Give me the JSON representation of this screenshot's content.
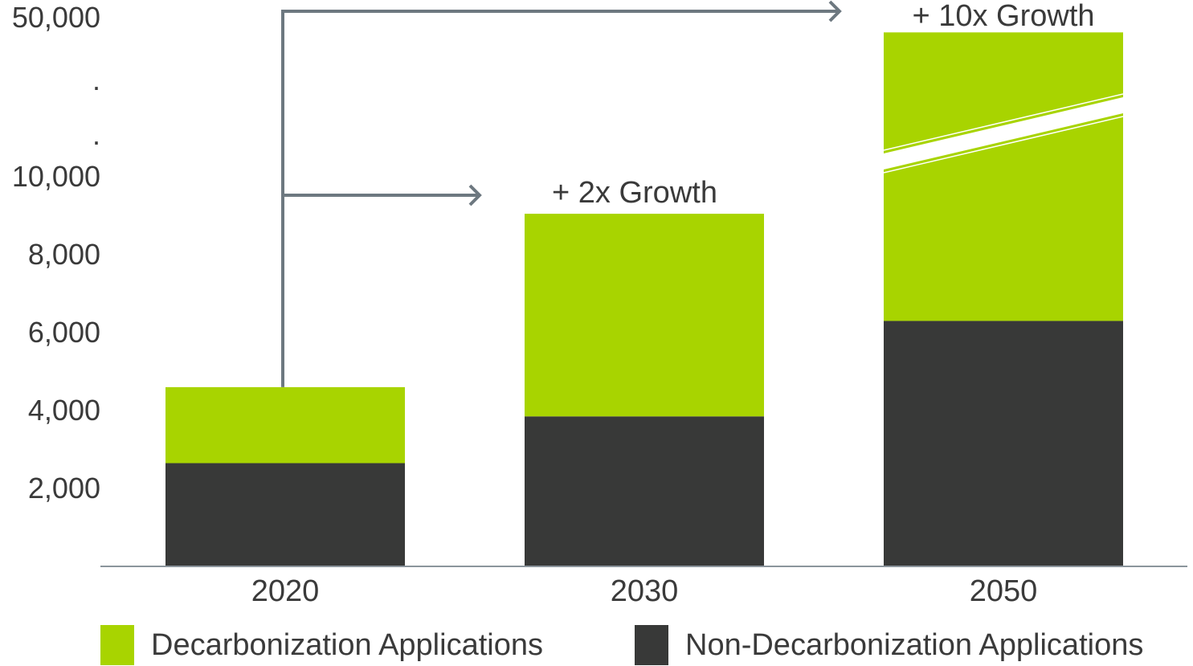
{
  "chart_data": {
    "type": "bar",
    "stacked": true,
    "categories": [
      "2020",
      "2030",
      "2050"
    ],
    "series": [
      {
        "name": "Non-Decarbonization Applications",
        "color": "#383938",
        "values": [
          2650,
          3850,
          6300
        ]
      },
      {
        "name": "Decarbonization Applications",
        "color": "#a8d400",
        "values": [
          1950,
          5200,
          40000
        ]
      }
    ],
    "y_ticks": [
      {
        "label": "2,000",
        "value": 2000
      },
      {
        "label": "4,000",
        "value": 4000
      },
      {
        "label": "6,000",
        "value": 6000
      },
      {
        "label": "8,000",
        "value": 8000
      },
      {
        "label": "10,000",
        "value": 10000
      },
      {
        "label": ".",
        "value": null
      },
      {
        "label": ".",
        "value": null
      },
      {
        "label": "50,000",
        "value": 50000
      }
    ],
    "axis_break": true,
    "ylim": [
      0,
      50000
    ],
    "legend": {
      "position": "bottom",
      "order": [
        1,
        0
      ]
    },
    "annotations": [
      {
        "text": "+ 2x Growth",
        "from": "2020",
        "to": "2030"
      },
      {
        "text": "+ 10x Growth",
        "from": "2020",
        "to": "2050"
      }
    ],
    "arrow_color": "#6d7880",
    "axis_color": "#8b959c"
  }
}
